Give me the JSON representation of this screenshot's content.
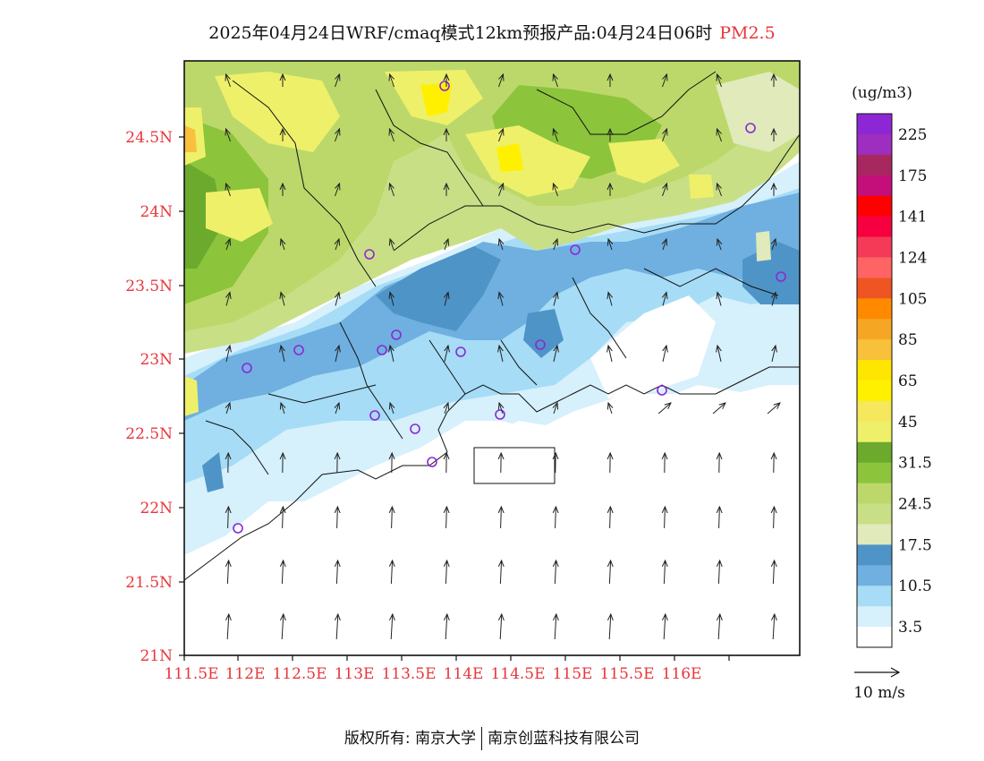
{
  "title": {
    "main": "2025年04月24日WRF/cmaq模式12km预报产品:04月24日06时",
    "pollutant": "PM2.5"
  },
  "axes": {
    "lat_labels": [
      "24.5N",
      "24N",
      "23.5N",
      "23N",
      "22.5N",
      "22N",
      "21.5N",
      "21N"
    ],
    "lon_labels": [
      "111.5E",
      "112E",
      "112.5E",
      "113E",
      "113.5E",
      "114E",
      "114.5E",
      "115E",
      "115.5E",
      "116E"
    ]
  },
  "legend": {
    "unit": "(ug/m3)",
    "labels": [
      "225",
      "175",
      "141",
      "124",
      "105",
      "85",
      "65",
      "45",
      "31.5",
      "24.5",
      "17.5",
      "10.5",
      "3.5"
    ],
    "colors": [
      "#8d27d6",
      "#9e2ec0",
      "#a7285f",
      "#c40f7a",
      "#ff0000",
      "#f7003f",
      "#f43a57",
      "#ff6464",
      "#ee5522",
      "#ff8a00",
      "#f5a623",
      "#f9c03c",
      "#ffe600",
      "#fff000",
      "#f5e85c",
      "#eef06a",
      "#6caa2e",
      "#8cc43c",
      "#bcd86a",
      "#c9df86",
      "#e0eaba",
      "#4f94c7",
      "#6fb0e0",
      "#a6dcf6",
      "#d6f0fc",
      "#ffffff"
    ],
    "wind_scale": "10 m/s"
  },
  "footer": {
    "left": "版权所有: 南京大学",
    "right": "南京创蓝科技有限公司"
  }
}
